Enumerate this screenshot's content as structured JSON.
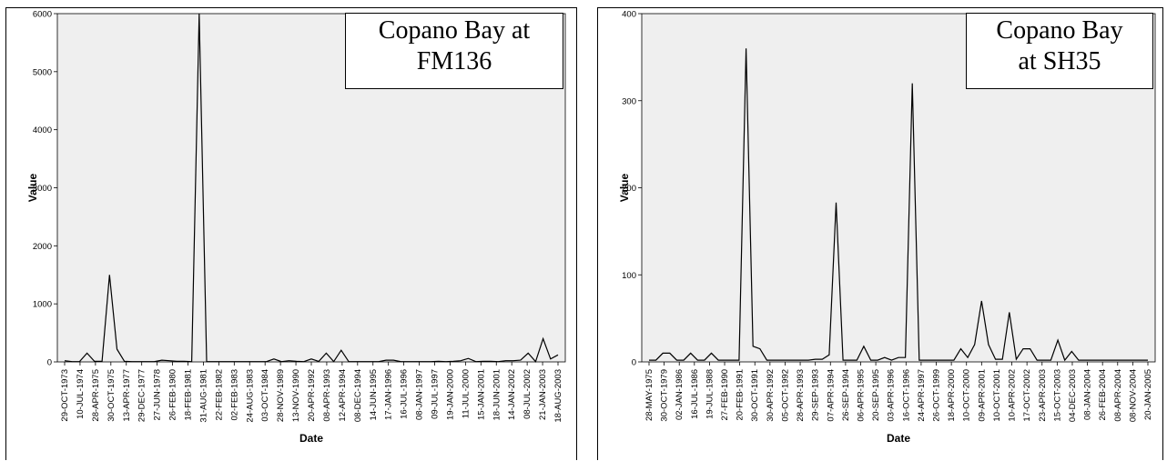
{
  "chart_data": [
    {
      "type": "line",
      "title_box": [
        "Copano Bay at",
        "FM136"
      ],
      "xlabel": "Date",
      "ylabel": "Value",
      "ylim": [
        0,
        6000
      ],
      "yticks": [
        0,
        1000,
        2000,
        3000,
        4000,
        5000,
        6000
      ],
      "grid": false,
      "xtick_labels": [
        "29-OCT-1973",
        "10-JUL-1974",
        "28-APR-1975",
        "30-OCT-1975",
        "13-APR-1977",
        "29-DEC-1977",
        "27-JUN-1978",
        "26-FEB-1980",
        "18-FEB-1981",
        "31-AUG-1981",
        "22-FEB-1982",
        "02-FEB-1983",
        "24-AUG-1983",
        "03-OCT-1984",
        "28-NOV-1989",
        "13-NOV-1990",
        "20-APR-1992",
        "08-APR-1993",
        "12-APR-1994",
        "08-DEC-1994",
        "14-JUN-1995",
        "17-JAN-1996",
        "16-JUL-1996",
        "08-JAN-1997",
        "09-JUL-1997",
        "19-JAN-2000",
        "11-JUL-2000",
        "15-JAN-2001",
        "18-JUN-2001",
        "14-JAN-2002",
        "08-JUL-2002",
        "21-JAN-2003",
        "18-AUG-2003"
      ],
      "series": [
        {
          "values": [
            20,
            5,
            5,
            150,
            10,
            10,
            1500,
            220,
            10,
            5,
            5,
            5,
            5,
            30,
            20,
            10,
            10,
            5,
            6000,
            5,
            5,
            5,
            5,
            5,
            5,
            5,
            5,
            5,
            50,
            5,
            20,
            10,
            5,
            50,
            10,
            150,
            5,
            200,
            5,
            5,
            5,
            5,
            5,
            30,
            30,
            5,
            5,
            5,
            5,
            5,
            10,
            5,
            10,
            20,
            60,
            5,
            10,
            10,
            5,
            20,
            20,
            30,
            150,
            5,
            400,
            50,
            120
          ]
        }
      ]
    },
    {
      "type": "line",
      "title_box": [
        "Copano Bay",
        "at SH35"
      ],
      "xlabel": "Date",
      "ylabel": "Value",
      "ylim": [
        0,
        400
      ],
      "yticks": [
        0,
        100,
        200,
        300,
        400
      ],
      "grid": false,
      "xtick_labels": [
        "28-MAY-1975",
        "30-OCT-1979",
        "02-JAN-1986",
        "16-JUL-1986",
        "19-JUL-1988",
        "27-FEB-1990",
        "20-FEB-1991",
        "30-OCT-1991",
        "30-APR-1992",
        "05-OCT-1992",
        "28-APR-1993",
        "29-SEP-1993",
        "07-APR-1994",
        "26-SEP-1994",
        "06-APR-1995",
        "20-SEP-1995",
        "03-APR-1996",
        "16-OCT-1996",
        "24-APR-1997",
        "26-OCT-1999",
        "18-APR-2000",
        "10-OCT-2000",
        "09-APR-2001",
        "10-OCT-2001",
        "10-APR-2002",
        "17-OCT-2002",
        "23-APR-2003",
        "15-OCT-2003",
        "04-DEC-2003",
        "08-JAN-2004",
        "26-FEB-2004",
        "08-APR-2004",
        "08-NOV-2004",
        "20-JAN-2005"
      ],
      "series": [
        {
          "values": [
            2,
            2,
            10,
            10,
            2,
            2,
            10,
            2,
            2,
            10,
            2,
            2,
            2,
            2,
            360,
            18,
            15,
            2,
            2,
            2,
            2,
            2,
            2,
            2,
            3,
            3,
            8,
            183,
            2,
            2,
            2,
            18,
            2,
            2,
            5,
            2,
            5,
            5,
            320,
            2,
            2,
            2,
            2,
            2,
            2,
            15,
            5,
            20,
            70,
            20,
            3,
            3,
            57,
            3,
            15,
            15,
            2,
            2,
            2,
            25,
            2,
            12,
            2,
            2,
            2,
            2,
            2,
            2,
            2,
            2,
            2,
            2,
            2
          ]
        }
      ]
    }
  ]
}
